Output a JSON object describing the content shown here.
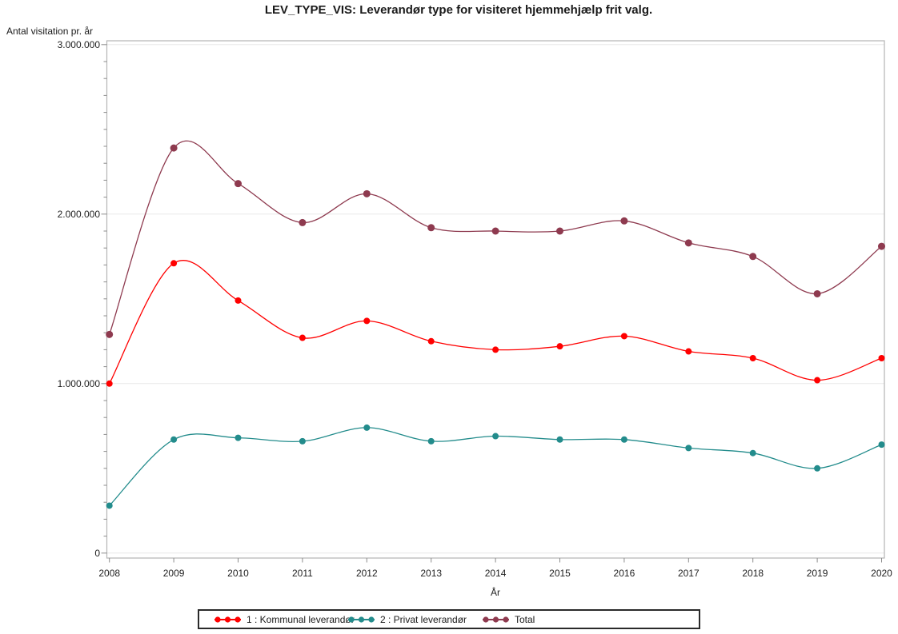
{
  "chart_data": {
    "type": "line",
    "title": "LEV_TYPE_VIS: Leverandør type for visiteret hjemmehjælp frit valg.",
    "xlabel": "År",
    "ylabel": "Antal visitation pr. år",
    "x": [
      2008,
      2009,
      2010,
      2011,
      2012,
      2013,
      2014,
      2015,
      2016,
      2017,
      2018,
      2019,
      2020
    ],
    "ylim": [
      0,
      3000000
    ],
    "ytick_interval": 1000000,
    "minor_tick_interval": 100000,
    "ytick_labels": [
      "0",
      "1.000.000",
      "2.000.000",
      "3.000.000"
    ],
    "grid": "horizontal-major-only",
    "legend_position": "bottom",
    "interpolation": "smooth-spline",
    "series": [
      {
        "name": "1 : Kommunal leverandør",
        "color": "#ff0000",
        "values": [
          1000000,
          1710000,
          1490000,
          1270000,
          1370000,
          1250000,
          1200000,
          1220000,
          1280000,
          1190000,
          1150000,
          1020000,
          1150000
        ]
      },
      {
        "name": "2 : Privat leverandør",
        "color": "#238c8c",
        "values": [
          280000,
          670000,
          680000,
          660000,
          740000,
          660000,
          690000,
          670000,
          670000,
          620000,
          590000,
          500000,
          640000
        ]
      },
      {
        "name": "Total",
        "color": "#8e3a4f",
        "values": [
          1290000,
          2390000,
          2180000,
          1950000,
          2120000,
          1920000,
          1900000,
          1900000,
          1960000,
          1830000,
          1750000,
          1530000,
          1810000
        ]
      }
    ],
    "style": {
      "frame_color": "#b4b4b4",
      "gridline_color": "#e8e8e8",
      "tick_color": "#8c8c8c",
      "text_color": "#1f1f1f"
    }
  }
}
